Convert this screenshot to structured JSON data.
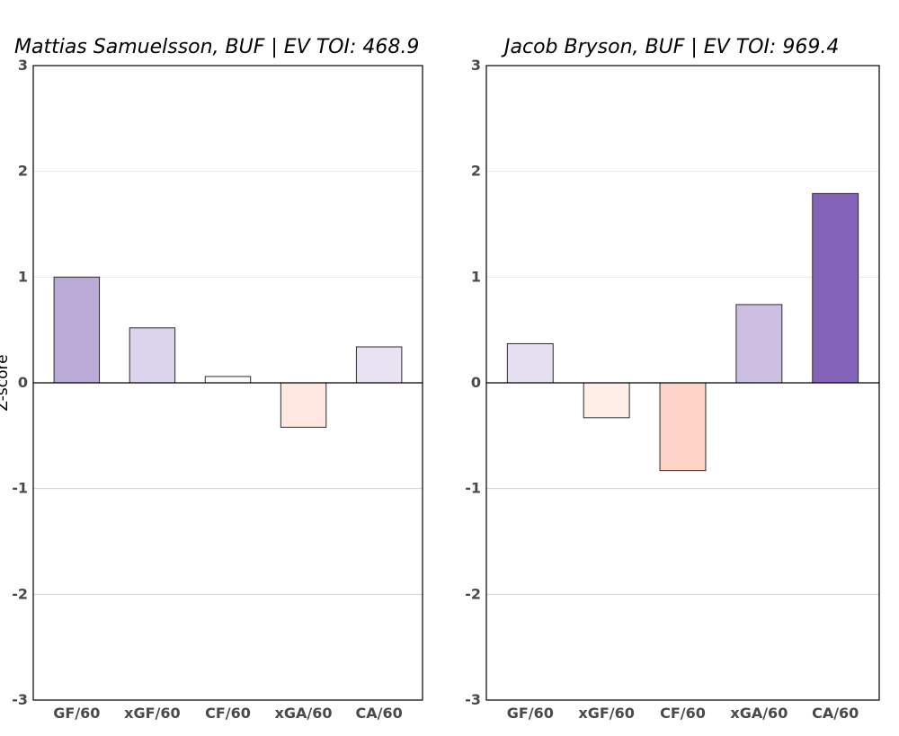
{
  "ylabel": "Z-score",
  "chart_data": [
    {
      "type": "bar",
      "title": "Mattias Samuelsson, BUF  |  EV TOI: 468.9",
      "categories": [
        "GF/60",
        "xGF/60",
        "CF/60",
        "xGA/60",
        "CA/60"
      ],
      "values": [
        1.0,
        0.52,
        0.06,
        -0.42,
        0.34
      ],
      "ylim": [
        -3,
        3
      ],
      "yticks": [
        3,
        2,
        1,
        0,
        -1,
        -2,
        -3
      ],
      "grid": true
    },
    {
      "type": "bar",
      "title": "Jacob Bryson, BUF  |  EV TOI: 969.4",
      "categories": [
        "GF/60",
        "xGF/60",
        "CF/60",
        "xGA/60",
        "CA/60"
      ],
      "values": [
        0.37,
        -0.33,
        -0.83,
        0.74,
        1.79
      ],
      "ylim": [
        -3,
        3
      ],
      "yticks": [
        3,
        2,
        1,
        0,
        -1,
        -2,
        -3
      ],
      "grid": true
    }
  ]
}
